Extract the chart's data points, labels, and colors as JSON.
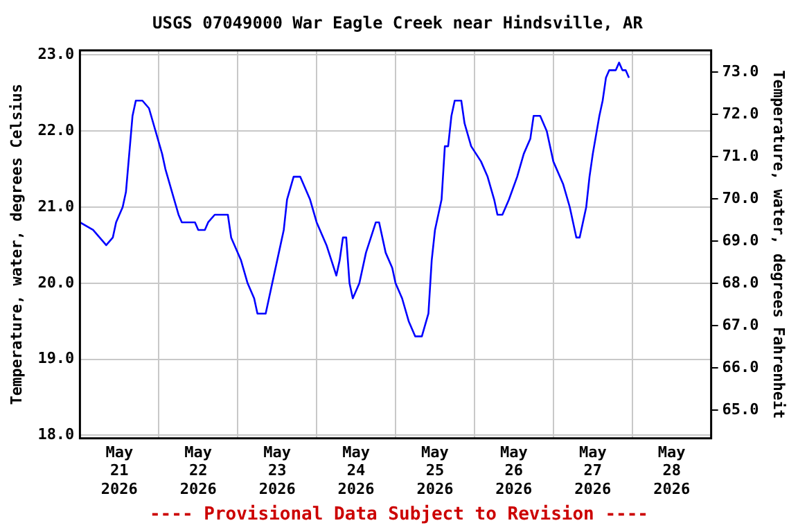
{
  "chart_data": {
    "type": "line",
    "title": "USGS 07049000 War Eagle Creek near Hindsville, AR",
    "ylabel": "Temperature, water, degrees Celsius",
    "y2label": "Temperature, water, degrees Fahrenheit",
    "annotations": [
      "---- Provisional Data Subject to Revision ----"
    ],
    "x": [
      "2026-05-21T00:00",
      "2026-05-21T04:00",
      "2026-05-21T06:00",
      "2026-05-21T08:00",
      "2026-05-21T10:00",
      "2026-05-21T11:00",
      "2026-05-21T13:00",
      "2026-05-21T14:00",
      "2026-05-21T15:00",
      "2026-05-21T16:00",
      "2026-05-21T17:00",
      "2026-05-21T19:00",
      "2026-05-21T21:00",
      "2026-05-21T23:00",
      "2026-05-22T01:00",
      "2026-05-22T02:00",
      "2026-05-22T04:00",
      "2026-05-22T06:00",
      "2026-05-22T07:00",
      "2026-05-22T11:00",
      "2026-05-22T12:00",
      "2026-05-22T14:00",
      "2026-05-22T15:00",
      "2026-05-22T17:00",
      "2026-05-22T21:00",
      "2026-05-22T22:00",
      "2026-05-23T01:00",
      "2026-05-23T03:00",
      "2026-05-23T05:00",
      "2026-05-23T06:00",
      "2026-05-23T08:30",
      "2026-05-23T10:00",
      "2026-05-23T12:00",
      "2026-05-23T14:00",
      "2026-05-23T15:00",
      "2026-05-23T17:00",
      "2026-05-23T19:00",
      "2026-05-23T22:00",
      "2026-05-24T00:00",
      "2026-05-24T03:00",
      "2026-05-24T06:00",
      "2026-05-24T07:00",
      "2026-05-24T08:00",
      "2026-05-24T09:00",
      "2026-05-24T10:00",
      "2026-05-24T11:00",
      "2026-05-24T13:00",
      "2026-05-24T15:00",
      "2026-05-24T18:00",
      "2026-05-24T19:00",
      "2026-05-24T21:00",
      "2026-05-24T23:00",
      "2026-05-25T00:00",
      "2026-05-25T02:00",
      "2026-05-25T04:00",
      "2026-05-25T06:00",
      "2026-05-25T08:00",
      "2026-05-25T10:00",
      "2026-05-25T11:00",
      "2026-05-25T12:00",
      "2026-05-25T14:00",
      "2026-05-25T15:00",
      "2026-05-25T16:00",
      "2026-05-25T17:00",
      "2026-05-25T18:00",
      "2026-05-25T20:00",
      "2026-05-25T21:00",
      "2026-05-25T23:00",
      "2026-05-26T02:00",
      "2026-05-26T04:00",
      "2026-05-26T06:00",
      "2026-05-26T07:00",
      "2026-05-26T08:30",
      "2026-05-26T10:30",
      "2026-05-26T13:00",
      "2026-05-26T15:00",
      "2026-05-26T17:00",
      "2026-05-26T18:00",
      "2026-05-26T20:00",
      "2026-05-26T22:00",
      "2026-05-27T00:00",
      "2026-05-27T03:00",
      "2026-05-27T05:00",
      "2026-05-27T06:00",
      "2026-05-27T07:00",
      "2026-05-27T08:00",
      "2026-05-27T10:00",
      "2026-05-27T11:00",
      "2026-05-27T12:00",
      "2026-05-27T14:00",
      "2026-05-27T15:00",
      "2026-05-27T16:00",
      "2026-05-27T17:00",
      "2026-05-27T19:00",
      "2026-05-27T20:00",
      "2026-05-27T21:00",
      "2026-05-27T22:00",
      "2026-05-27T23:00"
    ],
    "series": [
      {
        "color": "#0000ff",
        "values": [
          20.8,
          20.7,
          20.6,
          20.5,
          20.6,
          20.8,
          21.0,
          21.2,
          21.7,
          22.2,
          22.4,
          22.4,
          22.3,
          22.0,
          21.7,
          21.5,
          21.2,
          20.9,
          20.8,
          20.8,
          20.7,
          20.7,
          20.8,
          20.9,
          20.9,
          20.6,
          20.3,
          20.0,
          19.8,
          19.6,
          19.6,
          19.9,
          20.3,
          20.7,
          21.1,
          21.4,
          21.4,
          21.1,
          20.8,
          20.5,
          20.1,
          20.3,
          20.6,
          20.6,
          20.0,
          19.8,
          20.0,
          20.4,
          20.8,
          20.8,
          20.4,
          20.2,
          20.0,
          19.8,
          19.5,
          19.3,
          19.3,
          19.6,
          20.3,
          20.7,
          21.1,
          21.8,
          21.8,
          22.2,
          22.4,
          22.4,
          22.1,
          21.8,
          21.6,
          21.4,
          21.1,
          20.9,
          20.9,
          21.1,
          21.4,
          21.7,
          21.9,
          22.2,
          22.2,
          22.0,
          21.6,
          21.3,
          21.0,
          20.8,
          20.6,
          20.6,
          21.0,
          21.4,
          21.7,
          22.2,
          22.4,
          22.7,
          22.8,
          22.8,
          22.9,
          22.8,
          22.8,
          22.7
        ]
      }
    ],
    "xlim": [
      "2026-05-21T00:00",
      "2026-05-29T00:00"
    ],
    "xticks": [
      {
        "value": "2026-05-21T12:00",
        "label": "May 21 2026"
      },
      {
        "value": "2026-05-22T00:00",
        "label": null
      },
      {
        "value": "2026-05-22T12:00",
        "label": "May 22 2026"
      },
      {
        "value": "2026-05-23T00:00",
        "label": null
      },
      {
        "value": "2026-05-23T12:00",
        "label": "May 23 2026"
      },
      {
        "value": "2026-05-24T00:00",
        "label": null
      },
      {
        "value": "2026-05-24T12:00",
        "label": "May 24 2026"
      },
      {
        "value": "2026-05-25T00:00",
        "label": null
      },
      {
        "value": "2026-05-25T12:00",
        "label": "May 25 2026"
      },
      {
        "value": "2026-05-26T00:00",
        "label": null
      },
      {
        "value": "2026-05-26T12:00",
        "label": "May 26 2026"
      },
      {
        "value": "2026-05-27T00:00",
        "label": null
      },
      {
        "value": "2026-05-27T12:00",
        "label": "May 27 2026"
      },
      {
        "value": "2026-05-28T00:00",
        "label": null
      },
      {
        "value": "2026-05-28T12:00",
        "label": "May 28 2026"
      }
    ],
    "ylim": [
      17.96,
      23.06
    ],
    "yticks": [
      {
        "value": 18,
        "label": "18.0"
      },
      {
        "value": 19,
        "label": "19.0"
      },
      {
        "value": 20,
        "label": "20.0"
      },
      {
        "value": 21,
        "label": "21.0"
      },
      {
        "value": 22,
        "label": "22.0"
      },
      {
        "value": 23,
        "label": "23.0"
      }
    ],
    "y2lim": [
      64.33,
      73.51
    ],
    "y2ticks": [
      {
        "value": 65,
        "label": "65.0"
      },
      {
        "value": 66,
        "label": "66.0"
      },
      {
        "value": 67,
        "label": "67.0"
      },
      {
        "value": 68,
        "label": "68.0"
      },
      {
        "value": 69,
        "label": "69.0"
      },
      {
        "value": 70,
        "label": "70.0"
      },
      {
        "value": 71,
        "label": "71.0"
      },
      {
        "value": 72,
        "label": "72.0"
      },
      {
        "value": 73,
        "label": "73.0"
      }
    ],
    "grid": true,
    "legend": false,
    "marker": "none",
    "line_style": "solid"
  }
}
